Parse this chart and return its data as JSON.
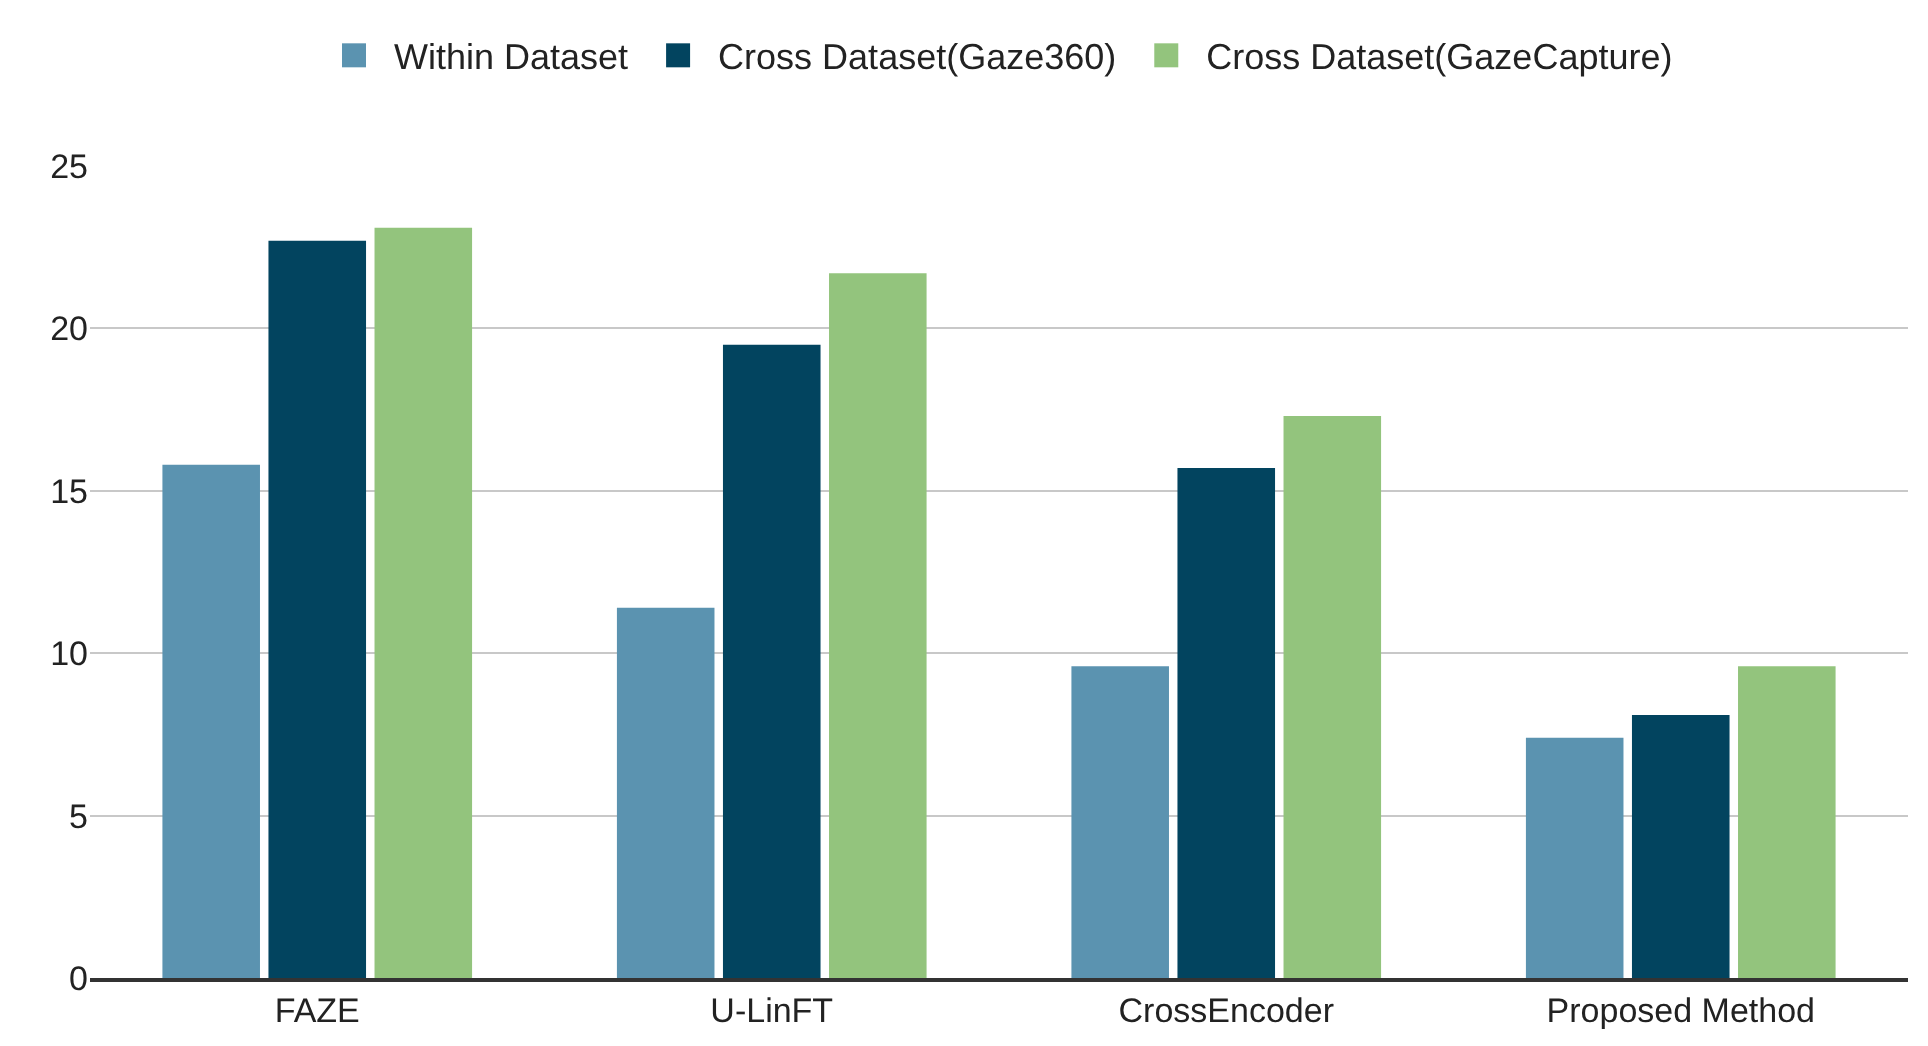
{
  "chart_data": {
    "type": "bar",
    "categories": [
      "FAZE",
      "U-LinFT",
      "CrossEncoder",
      "Proposed Method"
    ],
    "series": [
      {
        "name": "Within Dataset",
        "color": "#5b93b0",
        "values": [
          15.8,
          11.4,
          9.6,
          7.4
        ]
      },
      {
        "name": "Cross Dataset(Gaze360)",
        "color": "#02445f",
        "values": [
          22.7,
          19.5,
          15.7,
          8.1
        ]
      },
      {
        "name": "Cross Dataset(GazeCapture)",
        "color": "#93c47d",
        "values": [
          23.1,
          21.7,
          17.3,
          9.6
        ]
      }
    ],
    "ylim": [
      0,
      25
    ],
    "yticks": [
      0,
      5,
      10,
      15,
      20,
      25
    ],
    "grid": "y",
    "legend": "top"
  }
}
